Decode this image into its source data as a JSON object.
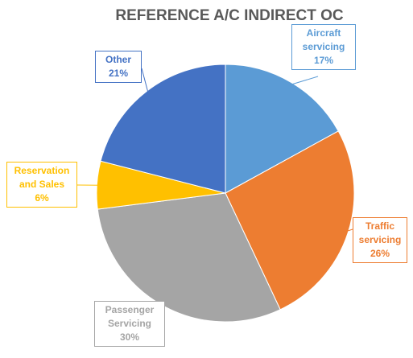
{
  "chart_data": {
    "type": "pie",
    "title": "REFERENCE A/C INDIRECT OC",
    "categories": [
      "Aircraft servicing",
      "Traffic servicing",
      "Passenger Servicing",
      "Reservation and Sales",
      "Other"
    ],
    "values": [
      17,
      26,
      30,
      6,
      21
    ],
    "value_labels": [
      "17%",
      "26%",
      "30%",
      "6%",
      "21%"
    ],
    "colors": [
      "#5b9bd5",
      "#ed7d31",
      "#a5a5a5",
      "#ffc000",
      "#4472c4"
    ]
  }
}
